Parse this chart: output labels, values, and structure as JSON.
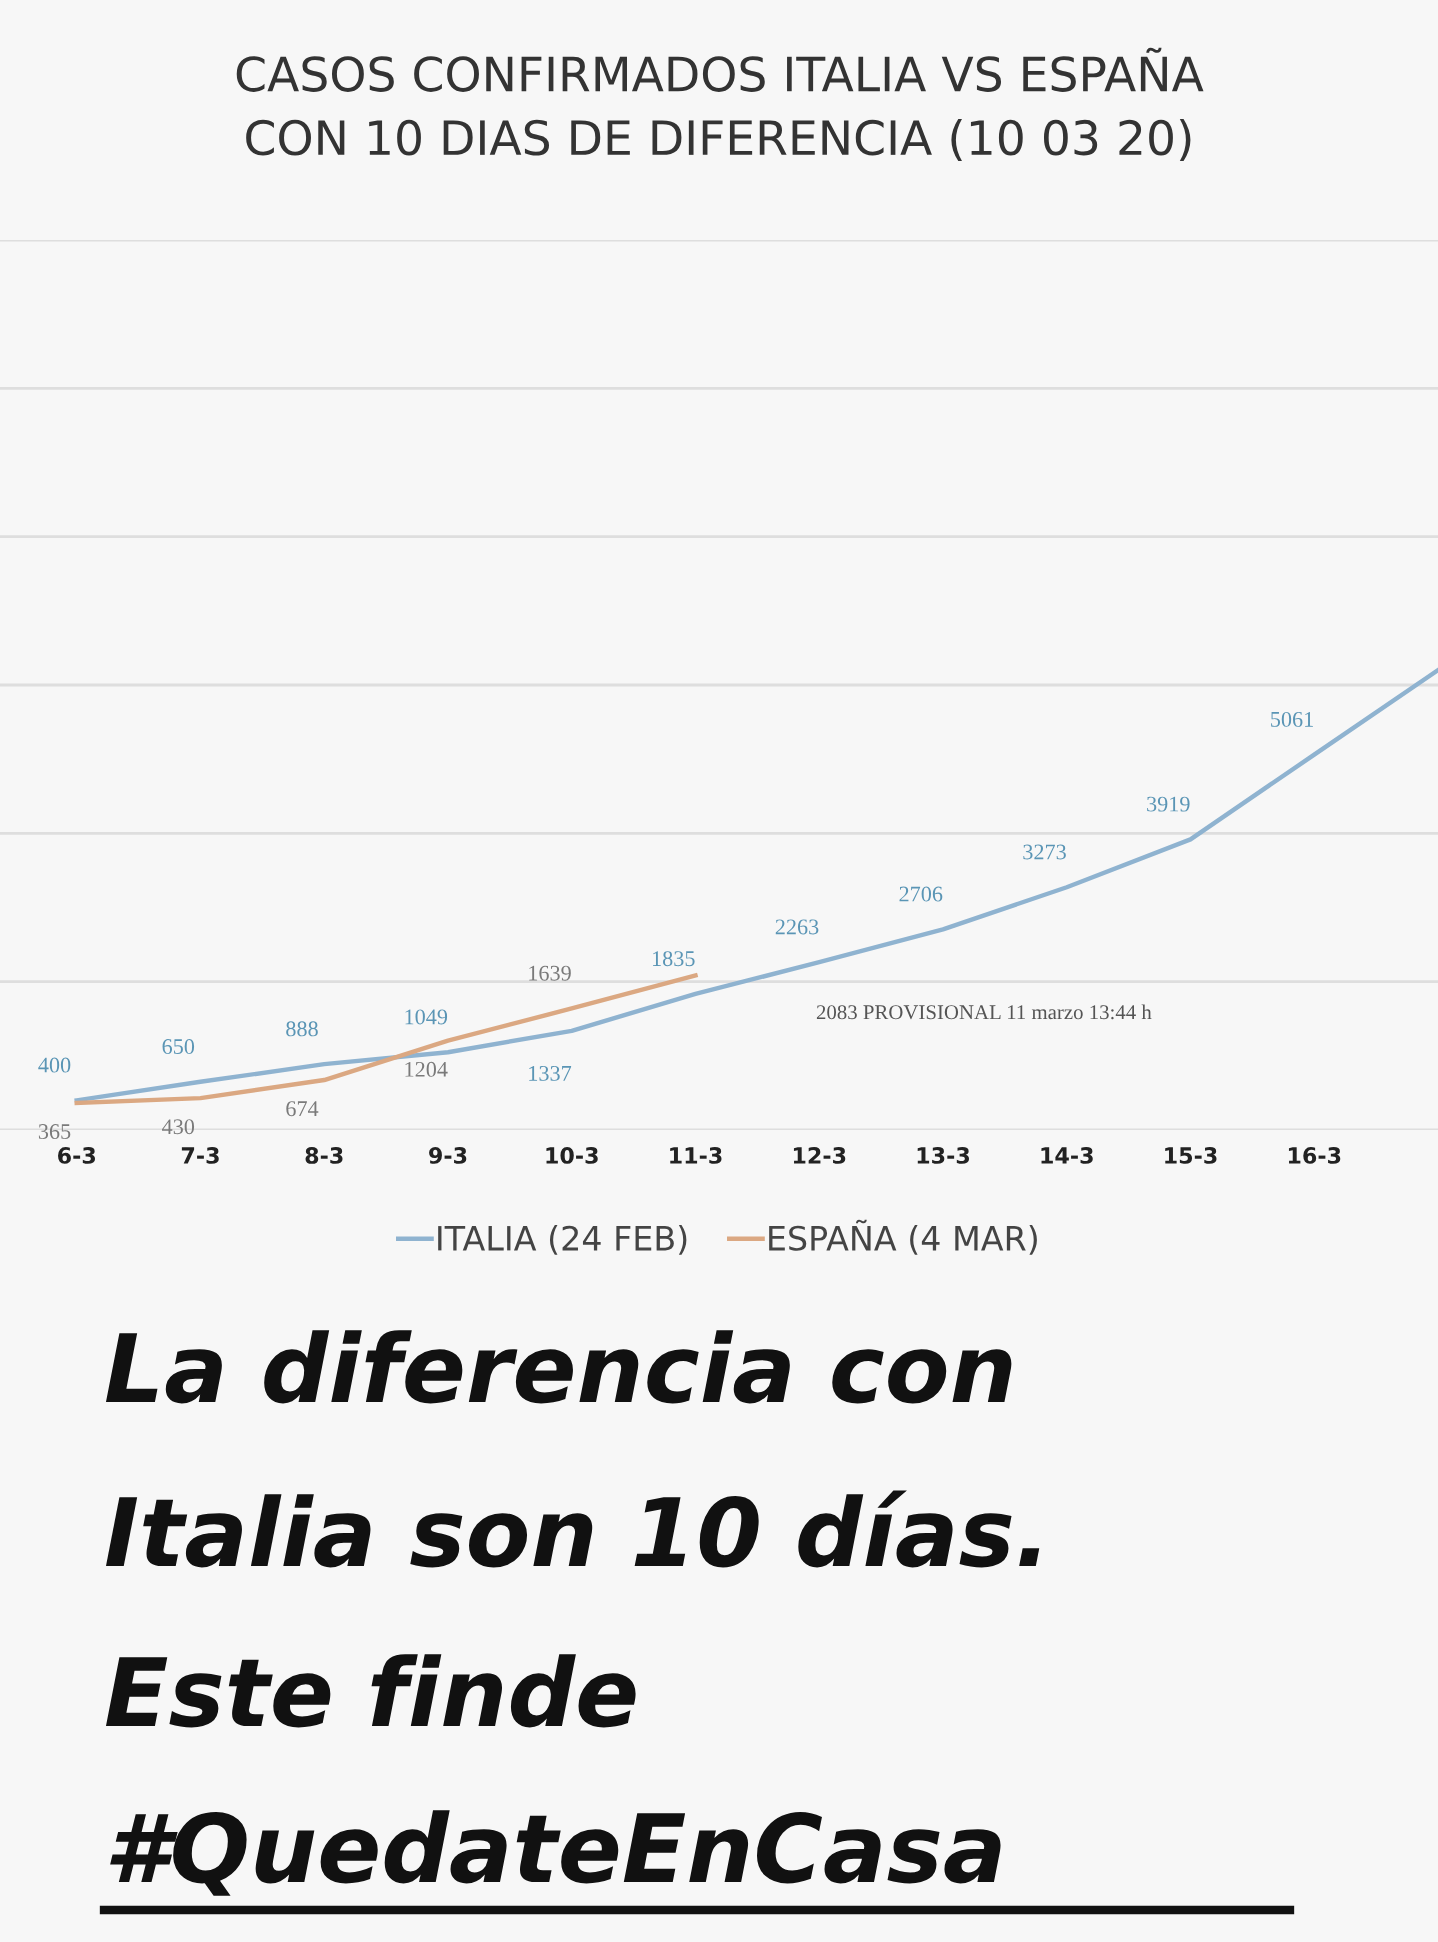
{
  "chart_data": {
    "type": "line",
    "title": "CASOS CONFIRMADOS ITALIA VS ESPAÑA\nCON 10 DIAS DE DIFERENCIA (10 03 20)",
    "categories": [
      "6-3",
      "7-3",
      "8-3",
      "9-3",
      "10-3",
      "11-3",
      "12-3",
      "13-3",
      "14-3",
      "15-3",
      "16-3",
      null
    ],
    "series": [
      {
        "name": "ITALIA (24 FEB)",
        "color": "#8fb3d0",
        "values": [
          400,
          650,
          888,
          1049,
          1337,
          1835,
          2263,
          2706,
          3273,
          3919,
          5061,
          6200
        ],
        "value_labels": [
          "400",
          "650",
          "888",
          "1049",
          "1337",
          "1835",
          "2263",
          "2706",
          "3273",
          "3919",
          "5061",
          null
        ]
      },
      {
        "name": "ESPAÑA (4 MAR)",
        "color": "#dba882",
        "values": [
          365,
          430,
          674,
          1204,
          1639,
          2083,
          null,
          null,
          null,
          null,
          null,
          null
        ],
        "value_labels": [
          "365",
          "430",
          "674",
          "1204",
          "1639",
          null,
          null,
          null,
          null,
          null,
          null,
          null
        ]
      }
    ],
    "ylim": [
      0,
      12000
    ],
    "yticks": [
      {
        "value": 0,
        "label": null
      },
      {
        "value": 2000,
        "label": null
      },
      {
        "value": 4000,
        "label": null
      },
      {
        "value": 6000,
        "label": null
      },
      {
        "value": 8000,
        "label": null
      },
      {
        "value": 10000,
        "label": null
      },
      {
        "value": 12000,
        "label": null
      }
    ],
    "tick_labels": "x",
    "grid": "y",
    "legend": "bottom",
    "marker": "none",
    "line_style": "solid",
    "annotations": [
      "2083 PROVISIONAL 11 marzo 13:44 h",
      "La diferencia con",
      "Italia son 10 días.",
      "Este finde",
      "#QuedateEnCasa"
    ]
  }
}
